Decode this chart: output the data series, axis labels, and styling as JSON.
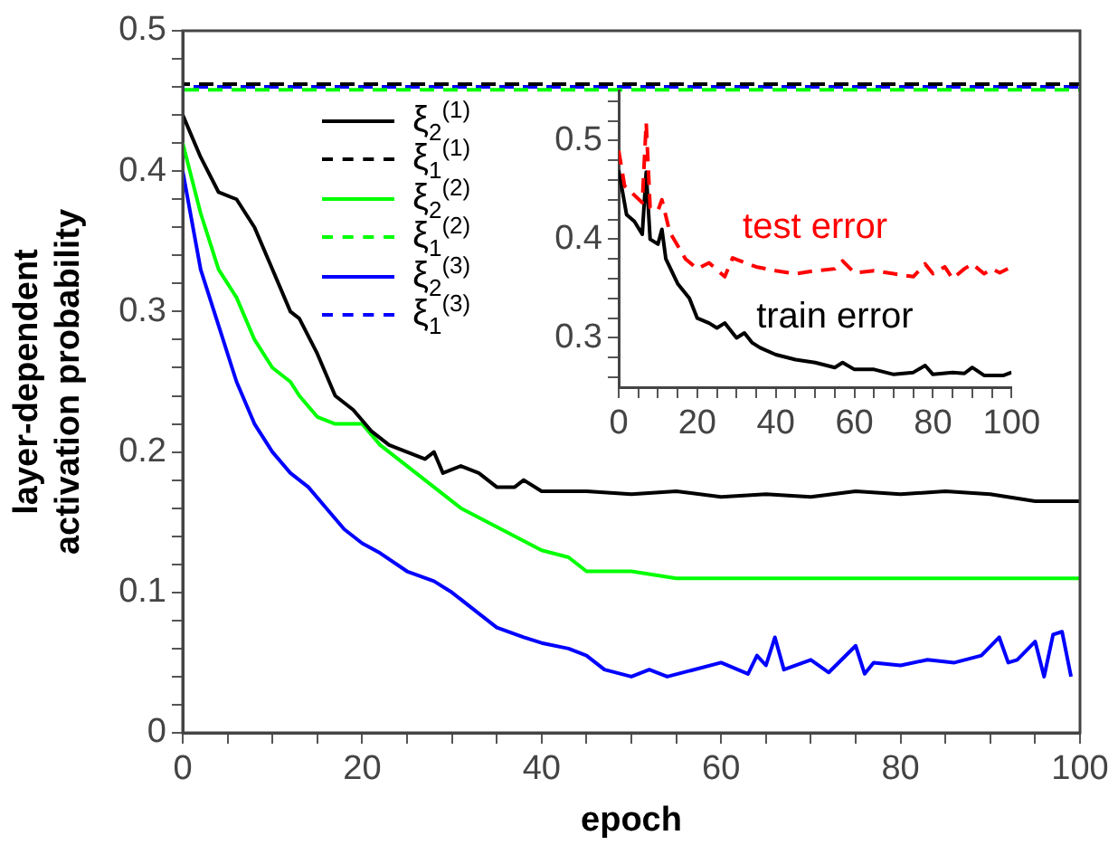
{
  "chart_data": [
    {
      "type": "line",
      "xlabel": "epoch",
      "ylabel": "layer-dependent activation probability",
      "legend": "top left",
      "grid": false,
      "xlim": [
        0,
        100
      ],
      "ylim": [
        0,
        0.5
      ],
      "xticks": [
        0,
        {
          "value": 5,
          "label": null
        },
        {
          "value": 10,
          "label": null
        },
        {
          "value": 15,
          "label": null
        },
        20,
        {
          "value": 25,
          "label": null
        },
        {
          "value": 30,
          "label": null
        },
        {
          "value": 35,
          "label": null
        },
        40,
        {
          "value": 45,
          "label": null
        },
        {
          "value": 50,
          "label": null
        },
        {
          "value": 55,
          "label": null
        },
        60,
        {
          "value": 65,
          "label": null
        },
        {
          "value": 70,
          "label": null
        },
        {
          "value": 75,
          "label": null
        },
        80,
        {
          "value": 85,
          "label": null
        },
        {
          "value": 90,
          "label": null
        },
        {
          "value": 95,
          "label": null
        },
        100
      ],
      "yticks": [
        0,
        {
          "value": 0.02,
          "label": null
        },
        {
          "value": 0.04,
          "label": null
        },
        {
          "value": 0.06,
          "label": null
        },
        {
          "value": 0.08,
          "label": null
        },
        0.1,
        {
          "value": 0.12,
          "label": null
        },
        {
          "value": 0.14,
          "label": null
        },
        {
          "value": 0.16,
          "label": null
        },
        {
          "value": 0.18,
          "label": null
        },
        0.2,
        {
          "value": 0.22,
          "label": null
        },
        {
          "value": 0.24,
          "label": null
        },
        {
          "value": 0.26,
          "label": null
        },
        {
          "value": 0.28,
          "label": null
        },
        0.3,
        {
          "value": 0.32,
          "label": null
        },
        {
          "value": 0.34,
          "label": null
        },
        {
          "value": 0.36,
          "label": null
        },
        {
          "value": 0.38,
          "label": null
        },
        0.4,
        {
          "value": 0.42,
          "label": null
        },
        {
          "value": 0.44,
          "label": null
        },
        {
          "value": 0.46,
          "label": null
        },
        {
          "value": 0.48,
          "label": null
        },
        0.5
      ],
      "series": [
        {
          "name": "ξ$_{2}$$^{(1)}$",
          "color": "#000000",
          "line_style": "solid",
          "x": [
            0,
            2,
            4,
            6,
            8,
            10,
            12,
            13,
            15,
            17,
            19,
            21,
            23,
            25,
            27,
            28,
            29,
            31,
            33,
            35,
            37,
            38,
            40,
            42,
            45,
            50,
            55,
            60,
            65,
            70,
            75,
            80,
            85,
            90,
            95,
            100
          ],
          "values": [
            0.44,
            0.41,
            0.385,
            0.38,
            0.36,
            0.33,
            0.3,
            0.295,
            0.27,
            0.24,
            0.23,
            0.215,
            0.205,
            0.2,
            0.195,
            0.2,
            0.185,
            0.19,
            0.185,
            0.175,
            0.175,
            0.18,
            0.172,
            0.172,
            0.172,
            0.17,
            0.172,
            0.168,
            0.17,
            0.168,
            0.172,
            0.17,
            0.172,
            0.17,
            0.165,
            0.165
          ]
        },
        {
          "name": "ξ$_{1}$$^{(1)}$",
          "color": "#000000",
          "line_style": "dashed",
          "x": [
            0,
            100
          ],
          "values": [
            0.462,
            0.462
          ]
        },
        {
          "name": "ξ$_{2}$$^{(2)}$",
          "color": "#00ff00",
          "line_style": "solid",
          "x": [
            0,
            2,
            4,
            6,
            8,
            10,
            12,
            13,
            15,
            17,
            20,
            22,
            25,
            28,
            31,
            34,
            37,
            40,
            43,
            45,
            50,
            55,
            60,
            70,
            80,
            90,
            100
          ],
          "values": [
            0.42,
            0.37,
            0.33,
            0.31,
            0.28,
            0.26,
            0.25,
            0.24,
            0.225,
            0.22,
            0.22,
            0.205,
            0.19,
            0.175,
            0.16,
            0.15,
            0.14,
            0.13,
            0.125,
            0.115,
            0.115,
            0.11,
            0.11,
            0.11,
            0.11,
            0.11,
            0.11
          ]
        },
        {
          "name": "ξ$_{1}$$^{(2)}$",
          "color": "#00ff00",
          "line_style": "dashed",
          "x": [
            0,
            100
          ],
          "values": [
            0.458,
            0.458
          ]
        },
        {
          "name": "ξ$_{2}$$^{(3)}$",
          "color": "#0000ff",
          "line_style": "solid",
          "x": [
            0,
            2,
            4,
            6,
            8,
            10,
            12,
            14,
            16,
            18,
            20,
            22,
            25,
            28,
            30,
            33,
            35,
            38,
            40,
            43,
            45,
            47,
            50,
            52,
            54,
            60,
            63,
            64,
            65,
            66,
            67,
            70,
            72,
            75,
            76,
            77,
            80,
            83,
            86,
            89,
            91,
            92,
            93,
            95,
            96,
            97,
            98,
            99
          ],
          "values": [
            0.4,
            0.33,
            0.29,
            0.25,
            0.22,
            0.2,
            0.185,
            0.175,
            0.16,
            0.145,
            0.135,
            0.128,
            0.115,
            0.108,
            0.1,
            0.085,
            0.075,
            0.068,
            0.064,
            0.06,
            0.055,
            0.045,
            0.04,
            0.045,
            0.04,
            0.05,
            0.042,
            0.055,
            0.048,
            0.068,
            0.045,
            0.052,
            0.043,
            0.062,
            0.042,
            0.05,
            0.048,
            0.052,
            0.05,
            0.055,
            0.068,
            0.05,
            0.052,
            0.065,
            0.04,
            0.07,
            0.072,
            0.04
          ]
        },
        {
          "name": "ξ$_{1}$$^{(3)}$",
          "color": "#0000ff",
          "line_style": "dashed",
          "x": [
            0,
            100
          ],
          "values": [
            0.46,
            0.46
          ]
        }
      ]
    },
    {
      "type": "line",
      "legend": false,
      "grid": false,
      "xlim": [
        0,
        100
      ],
      "ylim": [
        0.25,
        0.55
      ],
      "xticks": [
        0,
        {
          "value": 5,
          "label": null
        },
        {
          "value": 10,
          "label": null
        },
        {
          "value": 15,
          "label": null
        },
        20,
        {
          "value": 25,
          "label": null
        },
        {
          "value": 30,
          "label": null
        },
        {
          "value": 35,
          "label": null
        },
        40,
        {
          "value": 45,
          "label": null
        },
        {
          "value": 50,
          "label": null
        },
        {
          "value": 55,
          "label": null
        },
        60,
        {
          "value": 65,
          "label": null
        },
        {
          "value": 70,
          "label": null
        },
        {
          "value": 75,
          "label": null
        },
        80,
        {
          "value": 85,
          "label": null
        },
        {
          "value": 90,
          "label": null
        },
        {
          "value": 95,
          "label": null
        },
        100
      ],
      "yticks": [
        {
          "value": 0.26,
          "label": null
        },
        {
          "value": 0.28,
          "label": null
        },
        0.3,
        {
          "value": 0.32,
          "label": null
        },
        {
          "value": 0.34,
          "label": null
        },
        {
          "value": 0.36,
          "label": null
        },
        {
          "value": 0.38,
          "label": null
        },
        0.4,
        {
          "value": 0.42,
          "label": null
        },
        {
          "value": 0.44,
          "label": null
        },
        {
          "value": 0.46,
          "label": null
        },
        {
          "value": 0.48,
          "label": null
        },
        0.5,
        {
          "value": 0.52,
          "label": null
        },
        {
          "value": 0.54,
          "label": null
        }
      ],
      "series": [
        {
          "name": "test error",
          "color": "#ff0000",
          "line_style": "dashed",
          "x": [
            0,
            1.5,
            6,
            7,
            8,
            10,
            11,
            13,
            17,
            20,
            23,
            27,
            29,
            35,
            40,
            45,
            50,
            55,
            57,
            60,
            65,
            70,
            75,
            78,
            80,
            83,
            85,
            88,
            90,
            93,
            95,
            97,
            100
          ],
          "values": [
            0.49,
            0.454,
            0.437,
            0.518,
            0.432,
            0.429,
            0.44,
            0.407,
            0.38,
            0.37,
            0.376,
            0.362,
            0.381,
            0.372,
            0.368,
            0.365,
            0.368,
            0.37,
            0.378,
            0.366,
            0.368,
            0.365,
            0.362,
            0.375,
            0.365,
            0.372,
            0.36,
            0.37,
            0.375,
            0.365,
            0.37,
            0.366,
            0.372
          ]
        },
        {
          "name": "train error",
          "color": "#000000",
          "line_style": "solid",
          "x": [
            0,
            2,
            4,
            6,
            7,
            8,
            10,
            11,
            12,
            15,
            18,
            20,
            23,
            25,
            27,
            30,
            32,
            34,
            36,
            40,
            45,
            50,
            55,
            57,
            60,
            65,
            70,
            75,
            78,
            80,
            85,
            88,
            90,
            93,
            95,
            98,
            100
          ],
          "values": [
            0.47,
            0.425,
            0.418,
            0.405,
            0.468,
            0.4,
            0.395,
            0.41,
            0.38,
            0.355,
            0.34,
            0.32,
            0.315,
            0.31,
            0.315,
            0.3,
            0.305,
            0.295,
            0.29,
            0.283,
            0.278,
            0.275,
            0.27,
            0.275,
            0.268,
            0.268,
            0.263,
            0.265,
            0.272,
            0.263,
            0.265,
            0.264,
            0.27,
            0.262,
            0.262,
            0.262,
            0.265
          ]
        }
      ]
    }
  ]
}
